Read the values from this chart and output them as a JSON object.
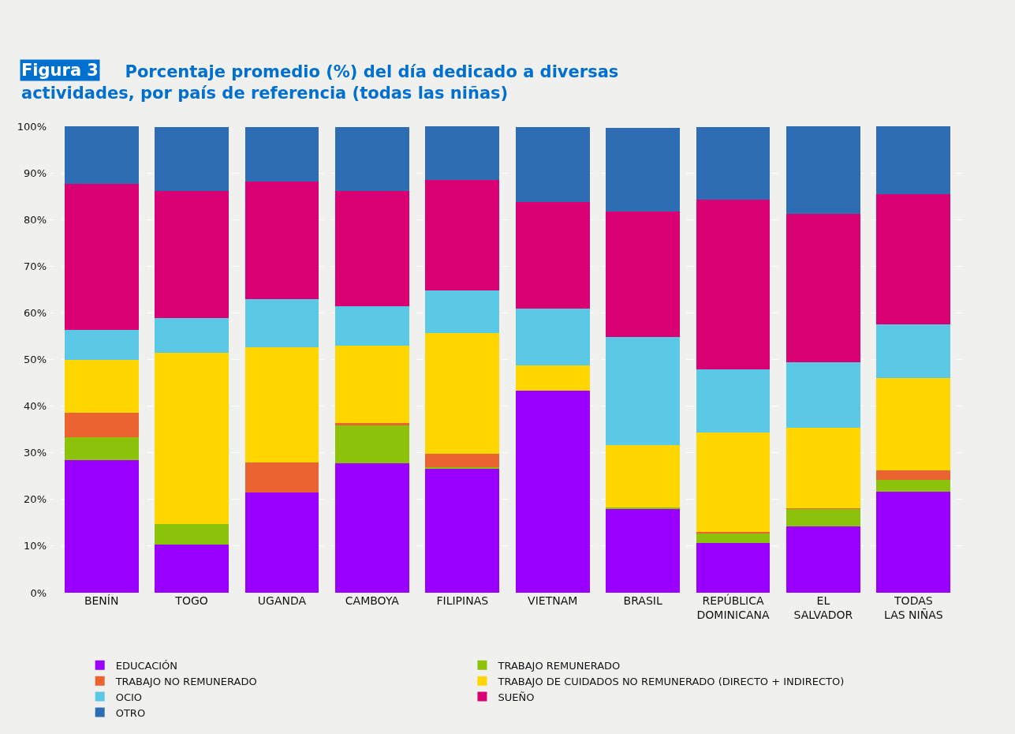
{
  "chart_data": {
    "type": "bar",
    "stacked": true,
    "title": "Porcentaje promedio (%) del día dedicado a diversas actividades, por país de referencia (todas las niñas)",
    "annotations": [
      "Figura 3"
    ],
    "categories": [
      "BENÍN",
      "TOGO",
      "UGANDA",
      "CAMBOYA",
      "FILIPINAS",
      "VIETNAM",
      "BRASIL",
      "REPÚBLICA DOMINICANA",
      "EL SALVADOR",
      "TODAS LAS NIÑAS"
    ],
    "series": [
      {
        "name": "EDUCACIÓN",
        "color": "#9900ff",
        "values": [
          28.4,
          10.4,
          21.5,
          27.8,
          26.7,
          43.4,
          18.1,
          10.7,
          14.2,
          21.7
        ]
      },
      {
        "name": "TRABAJO REMUNERADO",
        "color": "#8cc20a",
        "values": [
          5.0,
          4.3,
          null,
          8.0,
          0.2,
          0,
          0.2,
          2.1,
          3.8,
          2.5
        ]
      },
      {
        "name": "TRABAJO NO REMUNERADO",
        "color": "#eb6330",
        "values": [
          5.2,
          null,
          6.4,
          0.6,
          2.8,
          0,
          null,
          0.2,
          0.1,
          2.0
        ]
      },
      {
        "name": "TRABAJO DE CUIDADOS NO REMUNERADO (DIRECTO + INDIRECTO)",
        "color": "#ffd600",
        "values": [
          11.3,
          36.7,
          24.7,
          16.6,
          26.0,
          5.3,
          13.3,
          21.4,
          17.2,
          19.9
        ]
      },
      {
        "name": "OCIO",
        "color": "#5bc8e6",
        "values": [
          6.4,
          7.4,
          10.3,
          8.4,
          9.1,
          12.2,
          23.2,
          13.5,
          14.1,
          11.4
        ]
      },
      {
        "name": "SUEÑO",
        "color": "#d90073",
        "values": [
          31.3,
          27.4,
          25.2,
          24.7,
          23.7,
          22.9,
          26.9,
          36.3,
          31.9,
          28.0
        ]
      },
      {
        "name": "OTRO",
        "color": "#2e6db4",
        "values": [
          12.4,
          13.7,
          11.7,
          13.7,
          11.5,
          16.0,
          17.9,
          15.6,
          18.8,
          14.5
        ]
      }
    ],
    "ylim": [
      0,
      100
    ],
    "yticks": [
      {
        "value": 0,
        "label": "0%"
      },
      {
        "value": 10,
        "label": "10%"
      },
      {
        "value": 20,
        "label": "20%"
      },
      {
        "value": 30,
        "label": "30%"
      },
      {
        "value": 40,
        "label": "40%"
      },
      {
        "value": 50,
        "label": "50%"
      },
      {
        "value": 60,
        "label": "60%"
      },
      {
        "value": 70,
        "label": "70%"
      },
      {
        "value": 80,
        "label": "80%"
      },
      {
        "value": 90,
        "label": "90%"
      },
      {
        "value": 100,
        "label": "100%"
      }
    ],
    "grid": "y",
    "legend": "bottom"
  }
}
